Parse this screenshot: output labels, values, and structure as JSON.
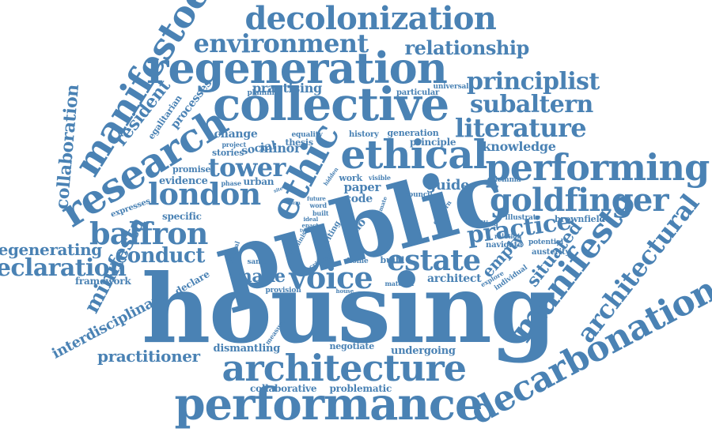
{
  "color": "#4a82b4",
  "words": [
    "public",
    "housing",
    "architecture",
    "performance",
    "collective",
    "regeneration",
    "decolonization",
    "ethical",
    "ethic",
    "performing",
    "decarbonation",
    "research",
    "manifestoes",
    "environment",
    "london",
    "balfron",
    "tower",
    "estate",
    "voice",
    "goldfinger",
    "manifesto",
    "architectural",
    "practice",
    "literature",
    "subaltern",
    "principlist",
    "relationship",
    "declaration",
    "conduct",
    "situated",
    "collaboration",
    "minifesta",
    "regenerating",
    "practitioner",
    "interdisciplinary",
    "resident",
    "make",
    "guide",
    "empty",
    "knowledge",
    "dismantling",
    "undergoing",
    "negotiate",
    "collaborative",
    "problematic",
    "framework",
    "declare",
    "architect",
    "particular",
    "universal",
    "practising",
    "processes",
    "egalitarian",
    "planning",
    "change",
    "project",
    "equality",
    "thesis",
    "history",
    "generation",
    "principle",
    "minor",
    "social",
    "stories",
    "promise",
    "evidence",
    "urban",
    "phase",
    "expresses",
    "specific",
    "hidden",
    "work",
    "visible",
    "paper",
    "code",
    "council",
    "concern",
    "future",
    "word",
    "built",
    "ernő",
    "writing",
    "climate",
    "feminist",
    "archival",
    "samuel",
    "critical",
    "home",
    "build",
    "material",
    "provision",
    "house",
    "measure",
    "explore",
    "individual",
    "navigate",
    "relation",
    "potential",
    "austerity",
    "illustrate",
    "brownfield",
    "telling",
    "dilemma",
    "ideal",
    "enact",
    "type",
    "site",
    "form"
  ]
}
